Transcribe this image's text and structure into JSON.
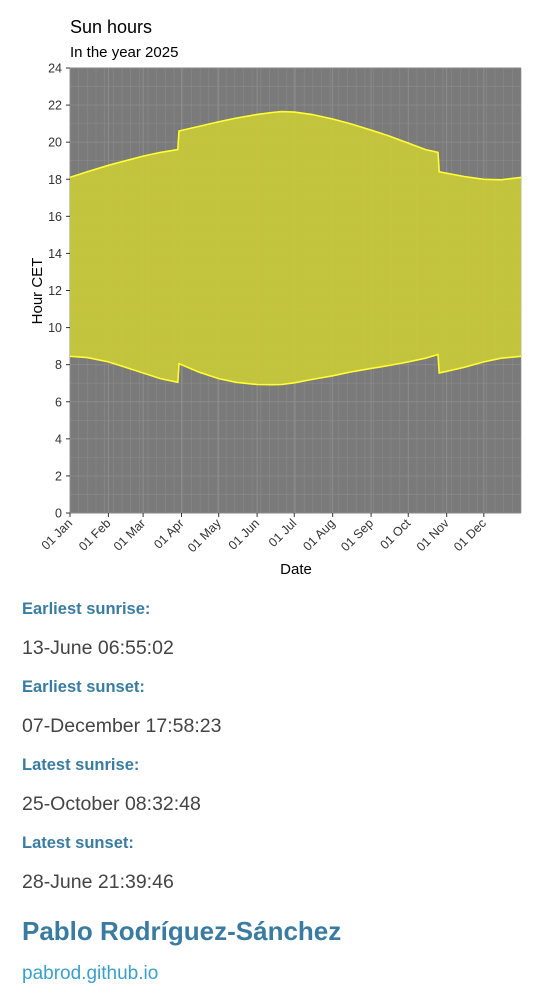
{
  "chart_data": {
    "type": "area",
    "title": "Sun hours",
    "subtitle": "In the year 2025",
    "xlabel": "Date",
    "ylabel": "Hour CET",
    "ylim": [
      0,
      24
    ],
    "xlim": [
      "2025-01-01",
      "2025-12-31"
    ],
    "yticks": [
      0,
      2,
      4,
      6,
      8,
      10,
      12,
      14,
      16,
      18,
      20,
      22,
      24
    ],
    "xticks": [
      {
        "date": "2025-01-01",
        "label": "01 Jan"
      },
      {
        "date": "2025-02-01",
        "label": "01 Feb"
      },
      {
        "date": "2025-03-01",
        "label": "01 Mar"
      },
      {
        "date": "2025-04-01",
        "label": "01 Apr"
      },
      {
        "date": "2025-05-01",
        "label": "01 May"
      },
      {
        "date": "2025-06-01",
        "label": "01 Jun"
      },
      {
        "date": "2025-07-01",
        "label": "01 Jul"
      },
      {
        "date": "2025-08-01",
        "label": "01 Aug"
      },
      {
        "date": "2025-09-01",
        "label": "01 Sep"
      },
      {
        "date": "2025-10-01",
        "label": "01 Oct"
      },
      {
        "date": "2025-11-01",
        "label": "01 Nov"
      },
      {
        "date": "2025-12-01",
        "label": "01 Dec"
      }
    ],
    "grid": true,
    "background_color": "#7a7a7a",
    "fill_color": "#c7c83a",
    "line_color": "#ffff33",
    "series": [
      {
        "x": [
          "2025-01-01",
          "2025-01-15",
          "2025-02-01",
          "2025-02-15",
          "2025-03-01",
          "2025-03-15",
          "2025-03-29",
          "2025-03-30",
          "2025-04-15",
          "2025-05-01",
          "2025-05-15",
          "2025-06-01",
          "2025-06-13",
          "2025-06-21",
          "2025-07-01",
          "2025-07-15",
          "2025-08-01",
          "2025-08-15",
          "2025-09-01",
          "2025-09-15",
          "2025-10-01",
          "2025-10-15",
          "2025-10-25",
          "2025-10-26",
          "2025-11-15",
          "2025-12-01",
          "2025-12-15",
          "2025-12-31"
        ],
        "sunrise": [
          8.45,
          8.38,
          8.15,
          7.85,
          7.55,
          7.25,
          7.05,
          8.05,
          7.6,
          7.25,
          7.05,
          6.93,
          6.92,
          6.93,
          7.02,
          7.2,
          7.4,
          7.6,
          7.8,
          7.95,
          8.15,
          8.35,
          8.55,
          7.55,
          7.85,
          8.15,
          8.35,
          8.45
        ],
        "sunset": [
          18.1,
          18.4,
          18.75,
          19.0,
          19.25,
          19.45,
          19.6,
          20.6,
          20.85,
          21.1,
          21.3,
          21.5,
          21.6,
          21.65,
          21.62,
          21.5,
          21.25,
          21.0,
          20.65,
          20.35,
          19.95,
          19.6,
          19.45,
          18.4,
          18.15,
          18.0,
          17.97,
          18.1
        ]
      }
    ]
  },
  "stats": {
    "earliest_sunrise_label": "Earliest sunrise:",
    "earliest_sunrise_value": "13-June 06:55:02",
    "earliest_sunset_label": "Earliest sunset:",
    "earliest_sunset_value": "07-December 17:58:23",
    "latest_sunrise_label": "Latest sunrise:",
    "latest_sunrise_value": "25-October 08:32:48",
    "latest_sunset_label": "Latest sunset:",
    "latest_sunset_value": "28-June 21:39:46"
  },
  "author": {
    "name": "Pablo Rodríguez-Sánchez",
    "link": "pabrod.github.io"
  }
}
